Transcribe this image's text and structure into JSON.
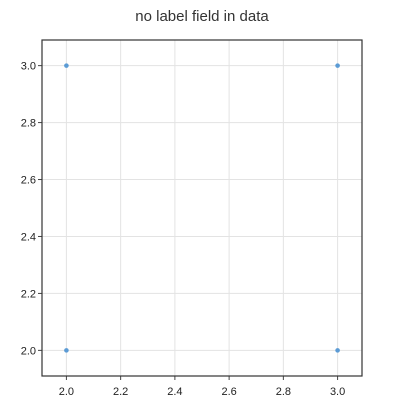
{
  "chart_data": {
    "type": "scatter",
    "title": "no label field in data",
    "xlabel": "",
    "ylabel": "",
    "xlim": [
      1.91,
      3.09
    ],
    "ylim": [
      1.91,
      3.09
    ],
    "x_ticks": [
      2.0,
      2.2,
      2.4,
      2.6,
      2.8,
      3.0
    ],
    "x_tick_labels": [
      "2.0",
      "2.2",
      "2.4",
      "2.6",
      "2.8",
      "3.0"
    ],
    "y_ticks": [
      2.0,
      2.2,
      2.4,
      2.6,
      2.8,
      3.0
    ],
    "y_tick_labels": [
      "2.0",
      "2.2",
      "2.4",
      "2.6",
      "2.8",
      "3.0"
    ],
    "grid": true,
    "legend": "none",
    "series": [
      {
        "color": "#5b9bd5",
        "points": [
          {
            "x": 2.0,
            "y": 3.0
          },
          {
            "x": 3.0,
            "y": 3.0
          },
          {
            "x": 2.0,
            "y": 2.0
          },
          {
            "x": 3.0,
            "y": 2.0
          }
        ]
      }
    ],
    "colors": {
      "frame": "#333333",
      "grid": "#e3e3e3",
      "marker": "#5b9bd5"
    }
  }
}
